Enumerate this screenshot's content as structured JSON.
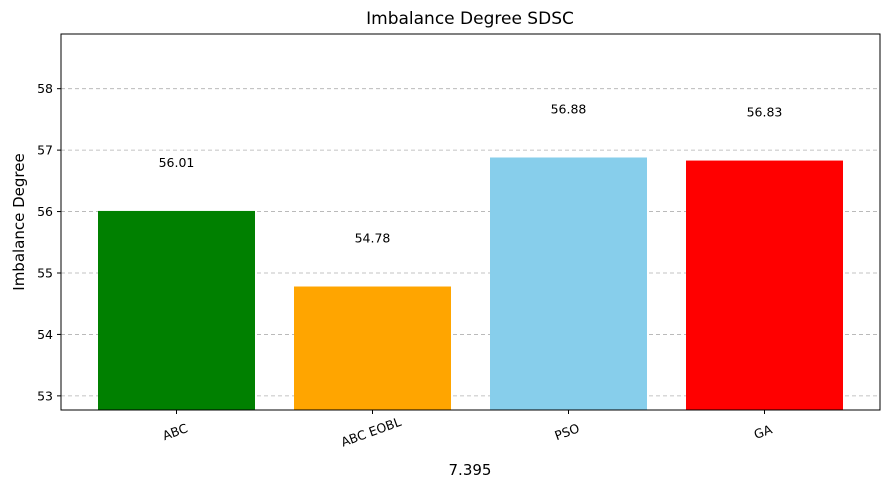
{
  "chart_data": {
    "type": "bar",
    "title": "Imbalance Degree SDSC",
    "xlabel": "7.395",
    "ylabel": "Imbalance Degree",
    "categories": [
      "ABC",
      "ABC EOBL",
      "PSO",
      "GA"
    ],
    "values": [
      56.01,
      54.78,
      56.88,
      56.83
    ],
    "value_labels": [
      "56.01",
      "54.78",
      "56.88",
      "56.83"
    ],
    "colors": [
      "#008000",
      "#ffa500",
      "#87ceeb",
      "#ff0000"
    ],
    "ylim": [
      52.77,
      58.89
    ],
    "yticks": [
      53,
      54,
      55,
      56,
      57,
      58
    ],
    "ytick_labels": [
      "53",
      "54",
      "55",
      "56",
      "57",
      "58"
    ],
    "grid": "y-dashed",
    "xtick_rotation_deg": 20
  }
}
